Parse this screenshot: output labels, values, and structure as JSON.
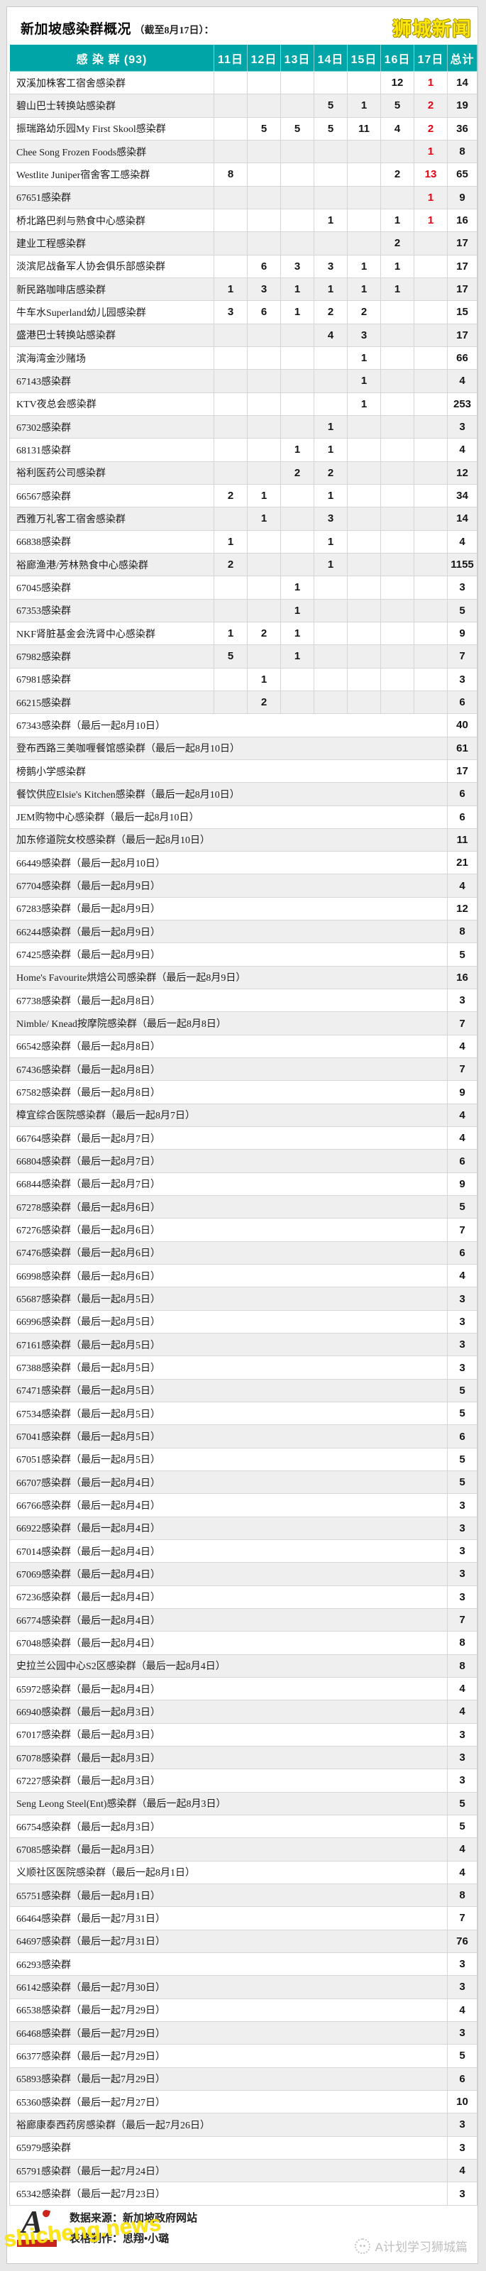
{
  "page": {
    "title_main": "新加坡感染群概况",
    "title_suffix": "（截至8月17日）：",
    "brand_logo_text": "狮城新闻",
    "watermark_bottom_left": "shicheng.news",
    "watermark_bottom_right": "A计划学习狮城篇",
    "footer": {
      "logo_letter": "A",
      "source_line": "数据来源：新加坡政府网站",
      "maker_line": "表格制作：思翔•小璐"
    }
  },
  "colors": {
    "header_teal": "#00a5a8",
    "day17_red": "#e60012",
    "brand_yellow": "#ffe60a",
    "row_alt_gray": "#efefef"
  },
  "table": {
    "columns": [
      "感 染 群 (93)",
      "11日",
      "12日",
      "13日",
      "14日",
      "15日",
      "16日",
      "17日",
      "总计"
    ],
    "rows": [
      {
        "name": "双溪加株客工宿舍感染群",
        "days": [
          "",
          "",
          "",
          "",
          "",
          "12",
          "1"
        ],
        "total": "14"
      },
      {
        "name": "碧山巴士转换站感染群",
        "days": [
          "",
          "",
          "",
          "5",
          "1",
          "5",
          "2"
        ],
        "total": "19"
      },
      {
        "name": "振瑞路幼乐园My First Skool感染群",
        "days": [
          "",
          "5",
          "5",
          "5",
          "11",
          "4",
          "2"
        ],
        "total": "36"
      },
      {
        "name": "Chee Song Frozen Foods感染群",
        "days": [
          "",
          "",
          "",
          "",
          "",
          "",
          "1"
        ],
        "total": "8"
      },
      {
        "name": "Westlite Juniper宿舍客工感染群",
        "days": [
          "8",
          "",
          "",
          "",
          "",
          "2",
          "13"
        ],
        "total": "65"
      },
      {
        "name": "67651感染群",
        "days": [
          "",
          "",
          "",
          "",
          "",
          "",
          "1"
        ],
        "total": "9"
      },
      {
        "name": "桥北路巴刹与熟食中心感染群",
        "days": [
          "",
          "",
          "",
          "1",
          "",
          "1",
          "1"
        ],
        "total": "16"
      },
      {
        "name": "建业工程感染群",
        "days": [
          "",
          "",
          "",
          "",
          "",
          "2",
          ""
        ],
        "total": "17"
      },
      {
        "name": "淡滨尼战备军人协会俱乐部感染群",
        "days": [
          "",
          "6",
          "3",
          "3",
          "1",
          "1",
          ""
        ],
        "total": "17"
      },
      {
        "name": "新民路咖啡店感染群",
        "days": [
          "1",
          "3",
          "1",
          "1",
          "1",
          "1",
          ""
        ],
        "total": "17"
      },
      {
        "name": "牛车水Superland幼儿园感染群",
        "days": [
          "3",
          "6",
          "1",
          "2",
          "2",
          "",
          ""
        ],
        "total": "15"
      },
      {
        "name": "盛港巴士转换站感染群",
        "days": [
          "",
          "",
          "",
          "4",
          "3",
          "",
          ""
        ],
        "total": "17"
      },
      {
        "name": "滨海湾金沙赌场",
        "days": [
          "",
          "",
          "",
          "",
          "1",
          "",
          ""
        ],
        "total": "66"
      },
      {
        "name": "67143感染群",
        "days": [
          "",
          "",
          "",
          "",
          "1",
          "",
          ""
        ],
        "total": "4"
      },
      {
        "name": "KTV夜总会感染群",
        "days": [
          "",
          "",
          "",
          "",
          "1",
          "",
          ""
        ],
        "total": "253"
      },
      {
        "name": "67302感染群",
        "days": [
          "",
          "",
          "",
          "1",
          "",
          "",
          ""
        ],
        "total": "3"
      },
      {
        "name": "68131感染群",
        "days": [
          "",
          "",
          "1",
          "1",
          "",
          "",
          ""
        ],
        "total": "4"
      },
      {
        "name": "裕利医药公司感染群",
        "days": [
          "",
          "",
          "2",
          "2",
          "",
          "",
          ""
        ],
        "total": "12"
      },
      {
        "name": "66567感染群",
        "days": [
          "2",
          "1",
          "",
          "1",
          "",
          "",
          ""
        ],
        "total": "34"
      },
      {
        "name": "西雅万礼客工宿舍感染群",
        "days": [
          "",
          "1",
          "",
          "3",
          "",
          "",
          ""
        ],
        "total": "14"
      },
      {
        "name": "66838感染群",
        "days": [
          "1",
          "",
          "",
          "1",
          "",
          "",
          ""
        ],
        "total": "4"
      },
      {
        "name": "裕廊渔港/芳林熟食中心感染群",
        "days": [
          "2",
          "",
          "",
          "1",
          "",
          "",
          ""
        ],
        "total": "1155"
      },
      {
        "name": "67045感染群",
        "days": [
          "",
          "",
          "1",
          "",
          "",
          "",
          ""
        ],
        "total": "3"
      },
      {
        "name": "67353感染群",
        "days": [
          "",
          "",
          "1",
          "",
          "",
          "",
          ""
        ],
        "total": "5"
      },
      {
        "name": "NKF肾脏基金会洗肾中心感染群",
        "days": [
          "1",
          "2",
          "1",
          "",
          "",
          "",
          ""
        ],
        "total": "9"
      },
      {
        "name": "67982感染群",
        "days": [
          "5",
          "",
          "1",
          "",
          "",
          "",
          ""
        ],
        "total": "7"
      },
      {
        "name": "67981感染群",
        "days": [
          "",
          "1",
          "",
          "",
          "",
          "",
          ""
        ],
        "total": "3"
      },
      {
        "name": "66215感染群",
        "days": [
          "",
          "2",
          "",
          "",
          "",
          "",
          ""
        ],
        "total": "6"
      },
      {
        "name": "67343感染群（最后一起8月10日）",
        "days": null,
        "total": "40"
      },
      {
        "name": "登布西路三美咖喱餐馆感染群（最后一起8月10日）",
        "days": null,
        "total": "61"
      },
      {
        "name": "榜鹅小学感染群",
        "days": null,
        "total": "17"
      },
      {
        "name": "餐饮供应Elsie's Kitchen感染群（最后一起8月10日）",
        "days": null,
        "total": "6"
      },
      {
        "name": "JEM购物中心感染群（最后一起8月10日）",
        "days": null,
        "total": "6"
      },
      {
        "name": "加东修道院女校感染群（最后一起8月10日）",
        "days": null,
        "total": "11"
      },
      {
        "name": "66449感染群（最后一起8月10日）",
        "days": null,
        "total": "21"
      },
      {
        "name": "67704感染群（最后一起8月9日）",
        "days": null,
        "total": "4"
      },
      {
        "name": "67283感染群（最后一起8月9日）",
        "days": null,
        "total": "12"
      },
      {
        "name": "66244感染群（最后一起8月9日）",
        "days": null,
        "total": "8"
      },
      {
        "name": "67425感染群（最后一起8月9日）",
        "days": null,
        "total": "5"
      },
      {
        "name": "Home's Favourite烘焙公司感染群（最后一起8月9日）",
        "days": null,
        "total": "16"
      },
      {
        "name": "67738感染群（最后一起8月8日）",
        "days": null,
        "total": "3"
      },
      {
        "name": "Nimble/ Knead按摩院感染群（最后一起8月8日）",
        "days": null,
        "total": "7"
      },
      {
        "name": "66542感染群（最后一起8月8日）",
        "days": null,
        "total": "4"
      },
      {
        "name": "67436感染群（最后一起8月8日）",
        "days": null,
        "total": "7"
      },
      {
        "name": "67582感染群（最后一起8月8日）",
        "days": null,
        "total": "9"
      },
      {
        "name": "樟宜综合医院感染群（最后一起8月7日）",
        "days": null,
        "total": "4"
      },
      {
        "name": "66764感染群（最后一起8月7日）",
        "days": null,
        "total": "4"
      },
      {
        "name": "66804感染群（最后一起8月7日）",
        "days": null,
        "total": "6"
      },
      {
        "name": "66844感染群（最后一起8月7日）",
        "days": null,
        "total": "9"
      },
      {
        "name": "67278感染群（最后一起8月6日）",
        "days": null,
        "total": "5"
      },
      {
        "name": "67276感染群（最后一起8月6日）",
        "days": null,
        "total": "7"
      },
      {
        "name": "67476感染群（最后一起8月6日）",
        "days": null,
        "total": "6"
      },
      {
        "name": "66998感染群（最后一起8月6日）",
        "days": null,
        "total": "4"
      },
      {
        "name": "65687感染群（最后一起8月5日）",
        "days": null,
        "total": "3"
      },
      {
        "name": "66996感染群（最后一起8月5日）",
        "days": null,
        "total": "3"
      },
      {
        "name": "67161感染群（最后一起8月5日）",
        "days": null,
        "total": "3"
      },
      {
        "name": "67388感染群（最后一起8月5日）",
        "days": null,
        "total": "3"
      },
      {
        "name": "67471感染群（最后一起8月5日）",
        "days": null,
        "total": "5"
      },
      {
        "name": "67534感染群（最后一起8月5日）",
        "days": null,
        "total": "5"
      },
      {
        "name": "67041感染群（最后一起8月5日）",
        "days": null,
        "total": "6"
      },
      {
        "name": "67051感染群（最后一起8月5日）",
        "days": null,
        "total": "5"
      },
      {
        "name": "66707感染群（最后一起8月4日）",
        "days": null,
        "total": "5"
      },
      {
        "name": "66766感染群（最后一起8月4日）",
        "days": null,
        "total": "3"
      },
      {
        "name": "66922感染群（最后一起8月4日）",
        "days": null,
        "total": "3"
      },
      {
        "name": "67014感染群（最后一起8月4日）",
        "days": null,
        "total": "3"
      },
      {
        "name": "67069感染群（最后一起8月4日）",
        "days": null,
        "total": "3"
      },
      {
        "name": "67236感染群（最后一起8月4日）",
        "days": null,
        "total": "3"
      },
      {
        "name": "66774感染群（最后一起8月4日）",
        "days": null,
        "total": "7"
      },
      {
        "name": "67048感染群（最后一起8月4日）",
        "days": null,
        "total": "8"
      },
      {
        "name": "史拉兰公园中心S2区感染群（最后一起8月4日）",
        "days": null,
        "total": "8"
      },
      {
        "name": "65972感染群（最后一起8月4日）",
        "days": null,
        "total": "4"
      },
      {
        "name": "66940感染群（最后一起8月3日）",
        "days": null,
        "total": "4"
      },
      {
        "name": "67017感染群（最后一起8月3日）",
        "days": null,
        "total": "3"
      },
      {
        "name": "67078感染群（最后一起8月3日）",
        "days": null,
        "total": "3"
      },
      {
        "name": "67227感染群（最后一起8月3日）",
        "days": null,
        "total": "3"
      },
      {
        "name": "Seng Leong Steel(Ent)感染群（最后一起8月3日）",
        "days": null,
        "total": "5"
      },
      {
        "name": "66754感染群（最后一起8月3日）",
        "days": null,
        "total": "5"
      },
      {
        "name": "67085感染群（最后一起8月3日）",
        "days": null,
        "total": "4"
      },
      {
        "name": "义顺社区医院感染群（最后一起8月1日）",
        "days": null,
        "total": "4"
      },
      {
        "name": "65751感染群（最后一起8月1日）",
        "days": null,
        "total": "8"
      },
      {
        "name": "66464感染群（最后一起7月31日）",
        "days": null,
        "total": "7"
      },
      {
        "name": "64697感染群（最后一起7月31日）",
        "days": null,
        "total": "76"
      },
      {
        "name": "66293感染群",
        "days": null,
        "total": "3"
      },
      {
        "name": "66142感染群（最后一起7月30日）",
        "days": null,
        "total": "3"
      },
      {
        "name": "66538感染群（最后一起7月29日）",
        "days": null,
        "total": "4"
      },
      {
        "name": "66468感染群（最后一起7月29日）",
        "days": null,
        "total": "3"
      },
      {
        "name": "66377感染群（最后一起7月29日）",
        "days": null,
        "total": "5"
      },
      {
        "name": "65893感染群（最后一起7月29日）",
        "days": null,
        "total": "6"
      },
      {
        "name": "65360感染群（最后一起7月27日）",
        "days": null,
        "total": "10"
      },
      {
        "name": "裕廊康泰西药房感染群（最后一起7月26日）",
        "days": null,
        "total": "3"
      },
      {
        "name": "65979感染群",
        "days": null,
        "total": "3"
      },
      {
        "name": "65791感染群（最后一起7月24日）",
        "days": null,
        "total": "4"
      },
      {
        "name": "65342感染群（最后一起7月23日）",
        "days": null,
        "total": "3"
      }
    ]
  }
}
